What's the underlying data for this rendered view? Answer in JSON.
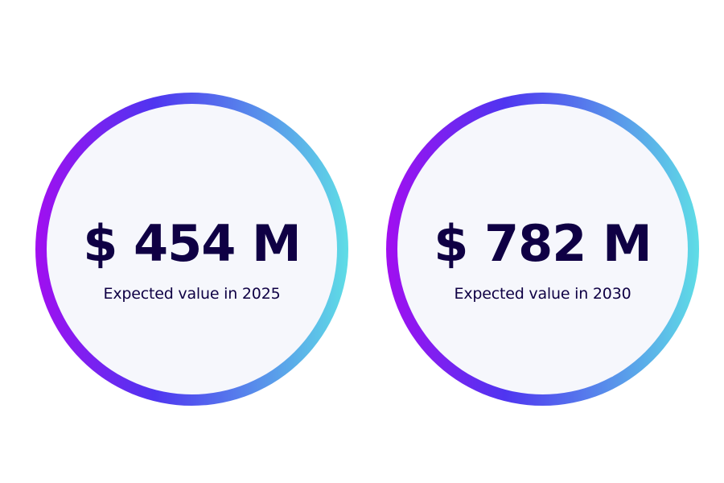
{
  "theme": {
    "background": "#ffffff",
    "circle_fill": "#f6f7fc",
    "text_color": "#0f0044",
    "gradient": [
      "#a10ff0",
      "#4f35f0",
      "#5fdde6"
    ]
  },
  "stats": [
    {
      "value": "$ 454 M",
      "label": "Expected value in 2025"
    },
    {
      "value": "$ 782 M",
      "label": "Expected value in 2030"
    }
  ]
}
